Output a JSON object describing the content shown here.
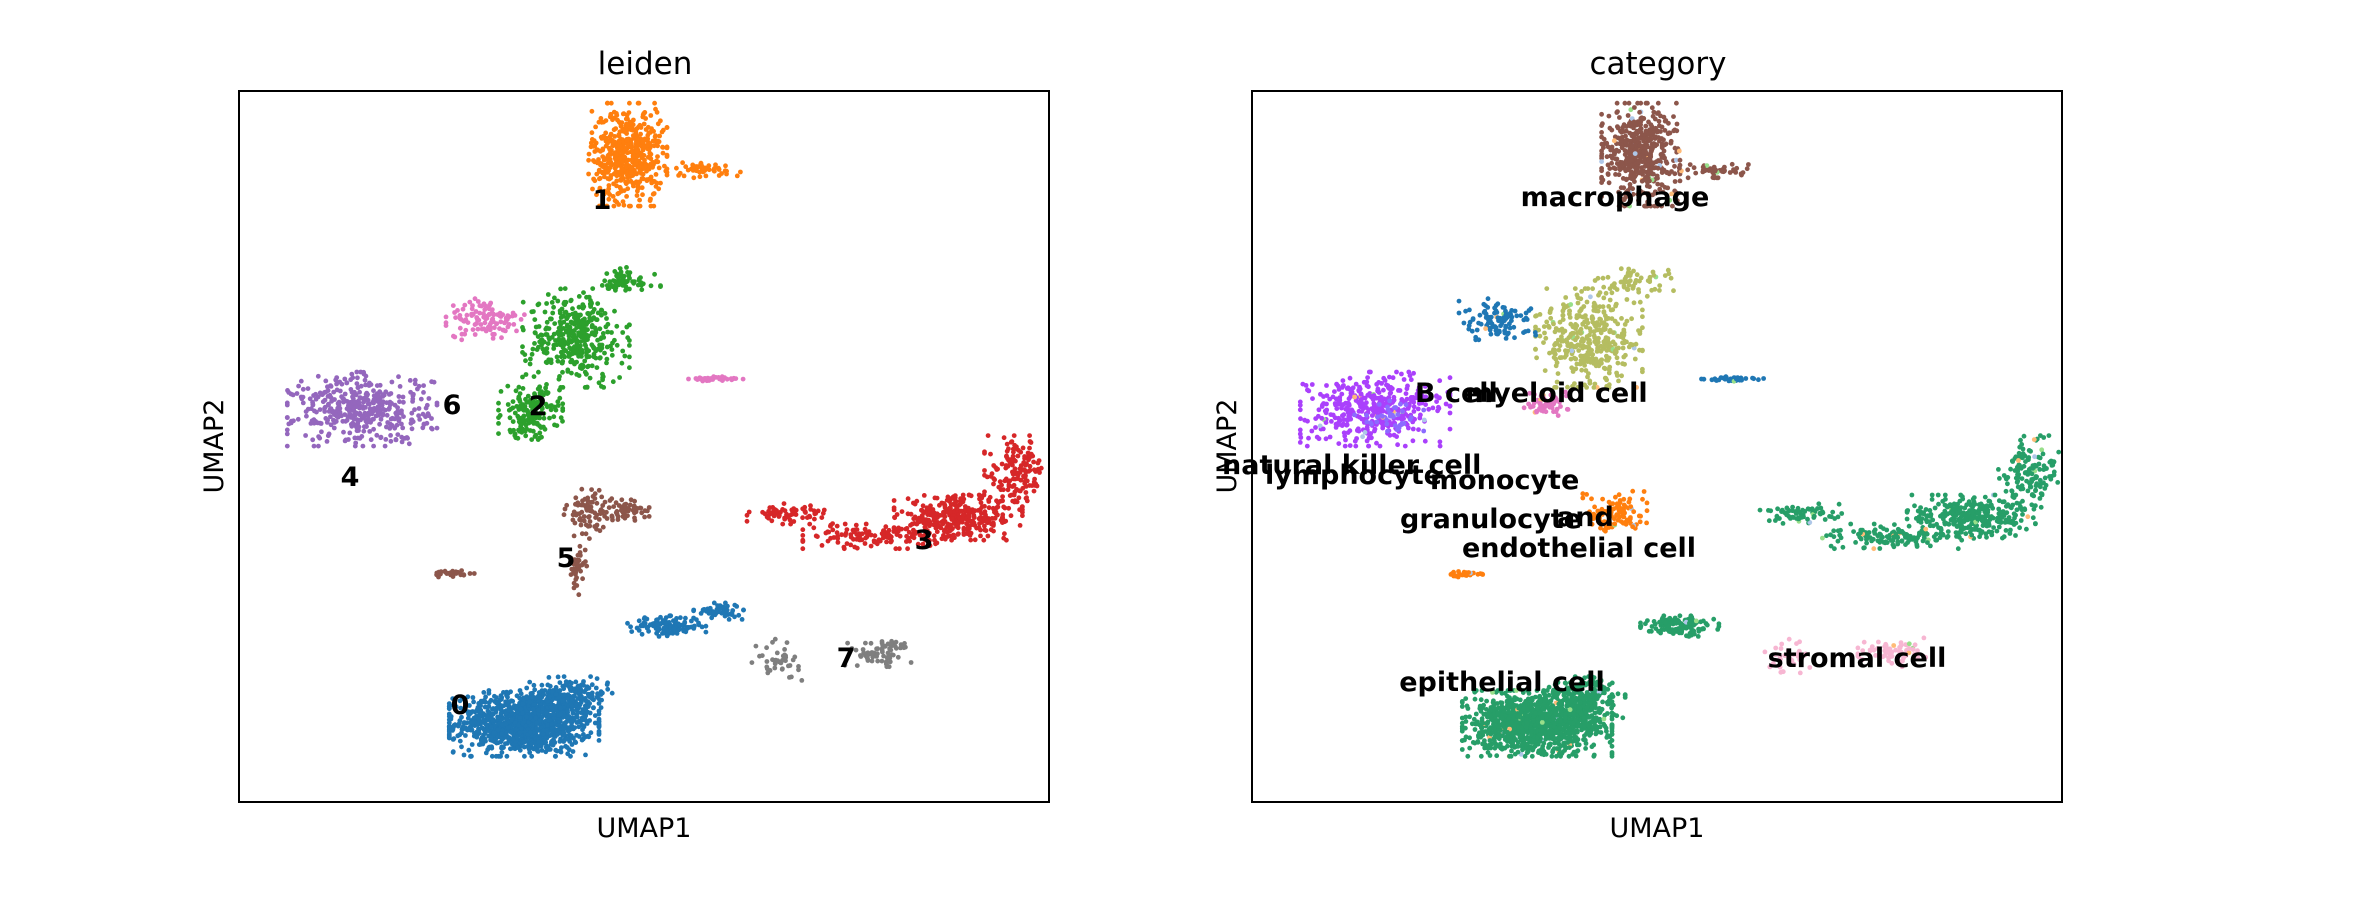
{
  "chart_data": [
    {
      "type": "scatter",
      "title": "leiden",
      "xlabel": "UMAP1",
      "ylabel": "UMAP2",
      "ticks": "none",
      "legend": "on data",
      "groups": [
        {
          "label": "0",
          "color": "#1f77b4",
          "blobs": [
            {
              "cx": -1.1,
              "cy": -6.9,
              "rx": 1.05,
              "ry": 0.8,
              "n": 1100
            },
            {
              "cx": -0.4,
              "cy": -6.2,
              "rx": 0.6,
              "ry": 0.5,
              "n": 220
            },
            {
              "cx": 1.1,
              "cy": -4.3,
              "rx": 0.55,
              "ry": 0.25,
              "n": 130
            },
            {
              "cx": 1.9,
              "cy": -3.9,
              "rx": 0.35,
              "ry": 0.2,
              "n": 60
            }
          ],
          "label_at": [
            -1.1,
            -6.9
          ]
        },
        {
          "label": "1",
          "color": "#ff7f0e",
          "blobs": [
            {
              "cx": 0.5,
              "cy": 8.3,
              "rx": 0.55,
              "ry": 1.25,
              "n": 520
            },
            {
              "cx": 1.7,
              "cy": 7.9,
              "rx": 0.55,
              "ry": 0.2,
              "n": 50
            }
          ],
          "label_at": [
            0.4,
            8.2
          ]
        },
        {
          "label": "2",
          "color": "#2ca02c",
          "blobs": [
            {
              "cx": -0.3,
              "cy": 3.4,
              "rx": 0.75,
              "ry": 1.2,
              "n": 380
            },
            {
              "cx": -1.0,
              "cy": 1.4,
              "rx": 0.45,
              "ry": 0.65,
              "n": 180
            },
            {
              "cx": 0.4,
              "cy": 4.9,
              "rx": 0.55,
              "ry": 0.35,
              "n": 60
            }
          ],
          "label_at": [
            -0.4,
            3.5
          ]
        },
        {
          "label": "3",
          "color": "#d62728",
          "blobs": [
            {
              "cx": 5.6,
              "cy": -1.4,
              "rx": 0.9,
              "ry": 0.55,
              "n": 330
            },
            {
              "cx": 6.5,
              "cy": -0.2,
              "rx": 0.45,
              "ry": 0.9,
              "n": 150
            },
            {
              "cx": 4.3,
              "cy": -1.9,
              "rx": 1.0,
              "ry": 0.3,
              "n": 130
            },
            {
              "cx": 3.0,
              "cy": -1.3,
              "rx": 0.6,
              "ry": 0.25,
              "n": 70
            }
          ],
          "label_at": [
            5.0,
            -1.2
          ]
        },
        {
          "label": "4",
          "color": "#9467bd",
          "blobs": [
            {
              "cx": -3.6,
              "cy": 1.5,
              "rx": 1.05,
              "ry": 0.9,
              "n": 420
            }
          ],
          "label_at": [
            -3.6,
            1.5
          ]
        },
        {
          "label": "5",
          "color": "#8c564b",
          "blobs": [
            {
              "cx": -0.1,
              "cy": -1.3,
              "rx": 0.35,
              "ry": 0.6,
              "n": 80
            },
            {
              "cx": 0.5,
              "cy": -1.2,
              "rx": 0.3,
              "ry": 0.25,
              "n": 50
            },
            {
              "cx": -0.3,
              "cy": -2.8,
              "rx": 0.15,
              "ry": 0.6,
              "n": 40
            },
            {
              "cx": -2.2,
              "cy": -2.9,
              "rx": 0.35,
              "ry": 0.08,
              "n": 25
            }
          ],
          "label_at": [
            -0.1,
            -1.6
          ]
        },
        {
          "label": "6",
          "color": "#e377c2",
          "blobs": [
            {
              "cx": -1.7,
              "cy": 3.9,
              "rx": 0.55,
              "ry": 0.5,
              "n": 110
            },
            {
              "cx": 1.9,
              "cy": 2.3,
              "rx": 0.45,
              "ry": 0.07,
              "n": 35
            }
          ],
          "label_at": [
            -1.6,
            3.6
          ]
        },
        {
          "label": "7",
          "color": "#7f7f7f",
          "blobs": [
            {
              "cx": 4.4,
              "cy": -5.0,
              "rx": 0.5,
              "ry": 0.35,
              "n": 70
            },
            {
              "cx": 2.8,
              "cy": -5.2,
              "rx": 0.35,
              "ry": 0.5,
              "n": 40
            }
          ],
          "label_at": [
            4.3,
            -5.2
          ]
        }
      ]
    },
    {
      "type": "scatter",
      "title": "category",
      "xlabel": "UMAP1",
      "ylabel": "UMAP2",
      "ticks": "none",
      "legend": "on data",
      "groups": [
        {
          "label": "epithelial cell",
          "color": "#279e68",
          "blobs": [
            {
              "cx": -1.1,
              "cy": -6.9,
              "rx": 1.05,
              "ry": 0.8,
              "n": 1100
            },
            {
              "cx": -0.4,
              "cy": -6.2,
              "rx": 0.6,
              "ry": 0.5,
              "n": 220
            },
            {
              "cx": 1.1,
              "cy": -4.3,
              "rx": 0.55,
              "ry": 0.25,
              "n": 130
            },
            {
              "cx": 5.6,
              "cy": -1.4,
              "rx": 0.9,
              "ry": 0.55,
              "n": 330
            },
            {
              "cx": 6.5,
              "cy": -0.2,
              "rx": 0.45,
              "ry": 0.9,
              "n": 150
            },
            {
              "cx": 4.3,
              "cy": -1.9,
              "rx": 1.0,
              "ry": 0.3,
              "n": 130
            },
            {
              "cx": 3.0,
              "cy": -1.3,
              "rx": 0.6,
              "ry": 0.25,
              "n": 70
            }
          ],
          "label_at": [
            -1.1,
            -6.9
          ]
        },
        {
          "label": "macrophage",
          "color": "#8c564b",
          "blobs": [
            {
              "cx": 0.5,
              "cy": 8.3,
              "rx": 0.55,
              "ry": 1.25,
              "n": 520
            },
            {
              "cx": 1.7,
              "cy": 7.9,
              "rx": 0.55,
              "ry": 0.2,
              "n": 50
            }
          ],
          "label_at": [
            0.4,
            8.2
          ]
        },
        {
          "label": "myeloid cell",
          "color": "#b5bd61",
          "blobs": [
            {
              "cx": -0.3,
              "cy": 3.4,
              "rx": 0.75,
              "ry": 1.2,
              "n": 380
            },
            {
              "cx": 0.4,
              "cy": 4.9,
              "rx": 0.55,
              "ry": 0.35,
              "n": 60
            }
          ],
          "label_at": [
            -0.2,
            3.7
          ]
        },
        {
          "label": "B cell",
          "color": "#1f77b4",
          "blobs": [
            {
              "cx": -1.7,
              "cy": 3.9,
              "rx": 0.55,
              "ry": 0.5,
              "n": 110
            },
            {
              "cx": 1.9,
              "cy": 2.3,
              "rx": 0.45,
              "ry": 0.07,
              "n": 35
            }
          ],
          "label_at": [
            -1.6,
            3.6
          ]
        },
        {
          "label": "natural killer cell",
          "color": "#aa40fc",
          "blobs": [
            {
              "cx": -3.6,
              "cy": 1.5,
              "rx": 1.05,
              "ry": 0.9,
              "n": 420
            }
          ],
          "label_at": [
            -4.4,
            1.9
          ]
        },
        {
          "label": "lymphocyte",
          "color": "#8c6bff",
          "blobs": [
            {
              "cx": -3.4,
              "cy": 1.3,
              "rx": 0.5,
              "ry": 0.4,
              "n": 40
            }
          ],
          "label_at": [
            -3.5,
            1.4
          ]
        },
        {
          "label": "monocyte",
          "color": "#e377c2",
          "blobs": [
            {
              "cx": -1.0,
              "cy": 1.6,
              "rx": 0.35,
              "ry": 0.35,
              "n": 60
            }
          ],
          "label_at": [
            -1.0,
            1.2
          ]
        },
        {
          "label": "granulocyte and endothelial cell",
          "color": "#ff7f0e",
          "blobs": [
            {
              "cx": 0.1,
              "cy": -1.3,
              "rx": 0.45,
              "ry": 0.55,
              "n": 110
            },
            {
              "cx": -2.2,
              "cy": -2.9,
              "rx": 0.35,
              "ry": 0.08,
              "n": 25
            }
          ],
          "label_at": [
            -0.3,
            -0.4
          ]
        },
        {
          "label": "stromal cell",
          "color": "#f7b6d2",
          "blobs": [
            {
              "cx": 4.4,
              "cy": -5.0,
              "rx": 0.5,
              "ry": 0.35,
              "n": 70
            },
            {
              "cx": 2.8,
              "cy": -5.2,
              "rx": 0.35,
              "ry": 0.5,
              "n": 40
            }
          ],
          "label_at": [
            4.5,
            -5.0
          ]
        }
      ],
      "extra_colors": [
        "#aec7e8",
        "#ffbb78",
        "#98df8a"
      ]
    }
  ],
  "text": {
    "left_title": "leiden",
    "right_title": "category",
    "left_xlabel": "UMAP1",
    "left_ylabel": "UMAP2",
    "right_xlabel": "UMAP1",
    "right_ylabel": "UMAP2",
    "labels_left": [
      "0",
      "1",
      "2",
      "3",
      "4",
      "5",
      "6",
      "7"
    ],
    "labels_right": [
      "macrophage",
      "B cell",
      "myeloid cell",
      "natural killer cell",
      "lymphocyte",
      "monocyte",
      "granulocyte",
      "and",
      "endothelial cell",
      "epithelial cell",
      "stromal cell"
    ]
  },
  "axis_range": {
    "x": [
      -5.5,
      7.0
    ],
    "y": [
      -9.0,
      10.0
    ]
  }
}
